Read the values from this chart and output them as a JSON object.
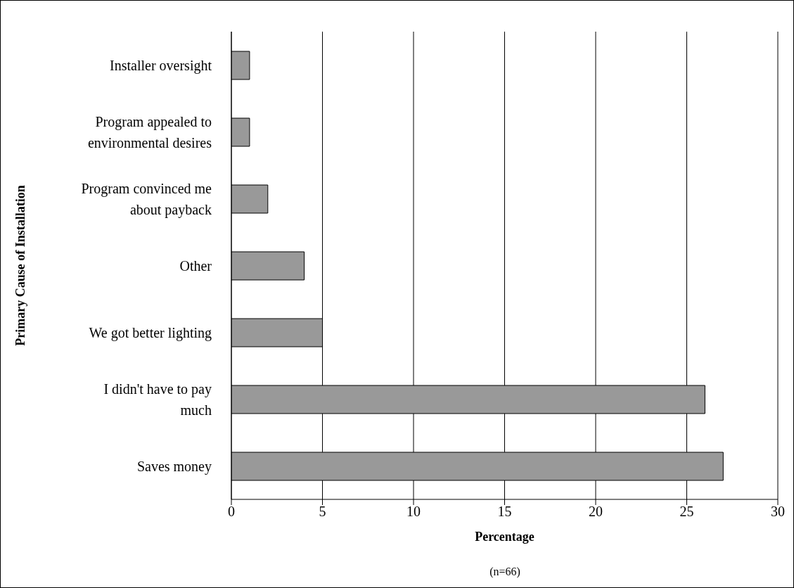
{
  "chart_data": {
    "type": "bar",
    "orientation": "horizontal",
    "xlabel": "Percentage",
    "ylabel": "Primary Cause of Installation",
    "annotations": [
      "(n=66)"
    ],
    "categories": [
      "Installer oversight",
      "Program appealed to environmental desires",
      "Program convinced me about payback",
      "Other",
      "We got better lighting",
      "I didn't have to pay much",
      "Saves money"
    ],
    "values": [
      1,
      1,
      2,
      4,
      5,
      26,
      27
    ],
    "color": "#999999",
    "xlim": [
      0,
      30
    ],
    "xticks": [
      0,
      5,
      10,
      15,
      20,
      25,
      30
    ],
    "grid": "x"
  }
}
